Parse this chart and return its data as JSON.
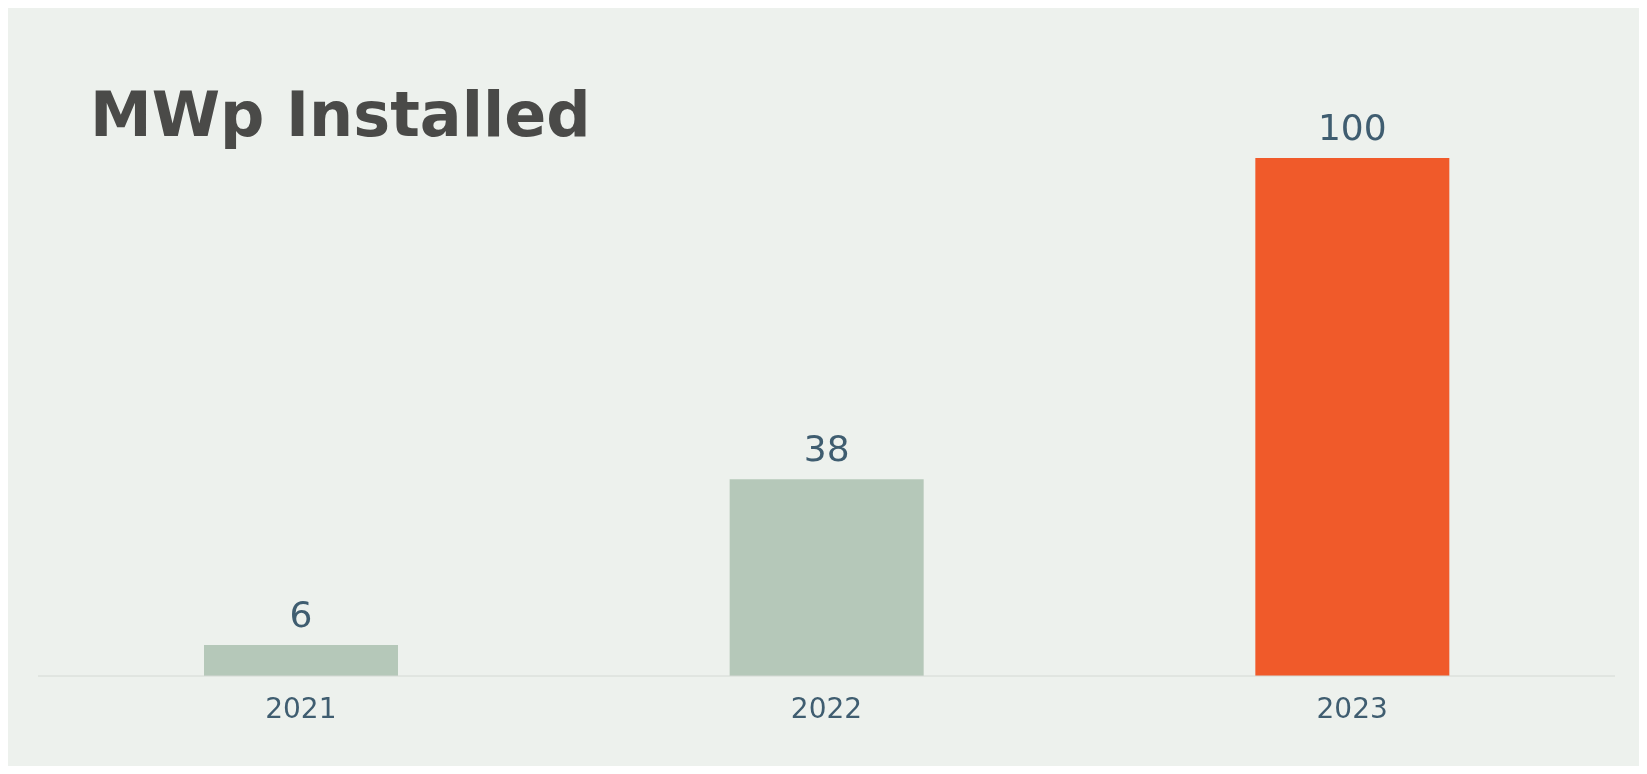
{
  "chart_data": {
    "type": "bar",
    "title": "MWp Installed",
    "categories": [
      "2021",
      "2022",
      "2023"
    ],
    "values": [
      6,
      38,
      100
    ],
    "colors": [
      "#b5c8b9",
      "#b5c8b9",
      "#f05a2a"
    ],
    "data_labels": true
  }
}
